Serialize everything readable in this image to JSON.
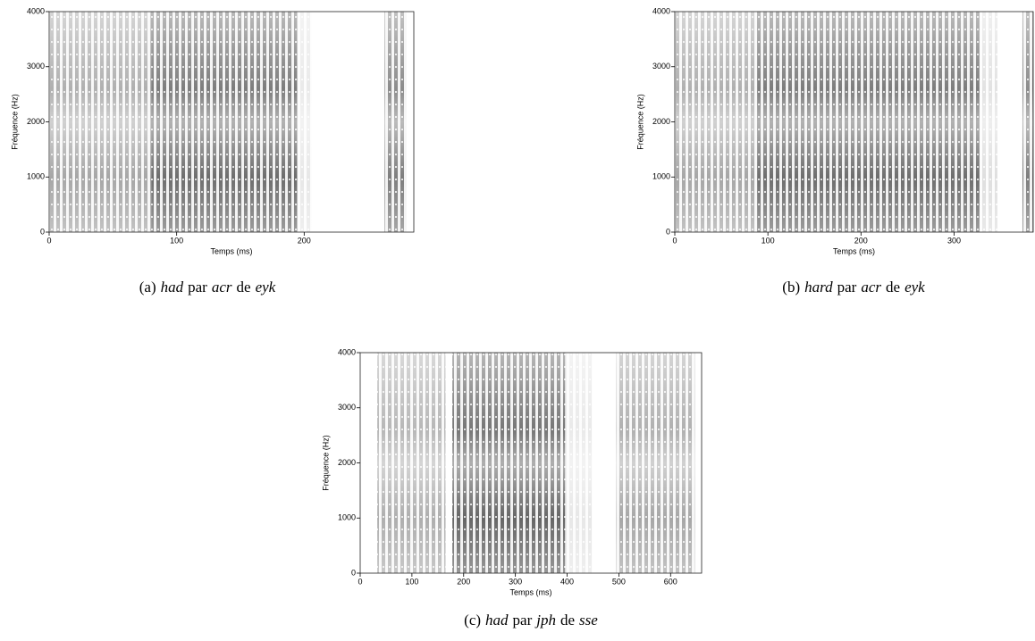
{
  "chart_data": [
    {
      "type": "spectrogram",
      "xlabel": "Temps (ms)",
      "ylabel": "Fréquence (Hz)",
      "xlim": [
        0,
        286
      ],
      "xticks": [
        0,
        100,
        200
      ],
      "ylim": [
        0,
        4000
      ],
      "yticks": [
        0,
        1000,
        2000,
        3000,
        4000
      ],
      "color": "#222222",
      "caption": [
        "(a)",
        "had",
        "par",
        "acr",
        "de",
        "eyk"
      ]
    },
    {
      "type": "spectrogram",
      "xlabel": "Temps (ms)",
      "ylabel": "Fréquence (Hz)",
      "xlim": [
        0,
        385
      ],
      "xticks": [
        0,
        100,
        200,
        300
      ],
      "ylim": [
        0,
        4000
      ],
      "yticks": [
        0,
        1000,
        2000,
        3000,
        4000
      ],
      "color": "#222222",
      "caption": [
        "(b)",
        "hard",
        "par",
        "acr",
        "de",
        "eyk"
      ]
    },
    {
      "type": "spectrogram",
      "xlabel": "Temps (ms)",
      "ylabel": "Fréquence (Hz)",
      "xlim": [
        0,
        660
      ],
      "xticks": [
        0,
        100,
        200,
        300,
        400,
        500,
        600
      ],
      "ylim": [
        0,
        4000
      ],
      "yticks": [
        0,
        1000,
        2000,
        3000,
        4000
      ],
      "color": "#222222",
      "caption": [
        "(c)",
        "had",
        "par",
        "jph",
        "de",
        "sse"
      ]
    }
  ]
}
